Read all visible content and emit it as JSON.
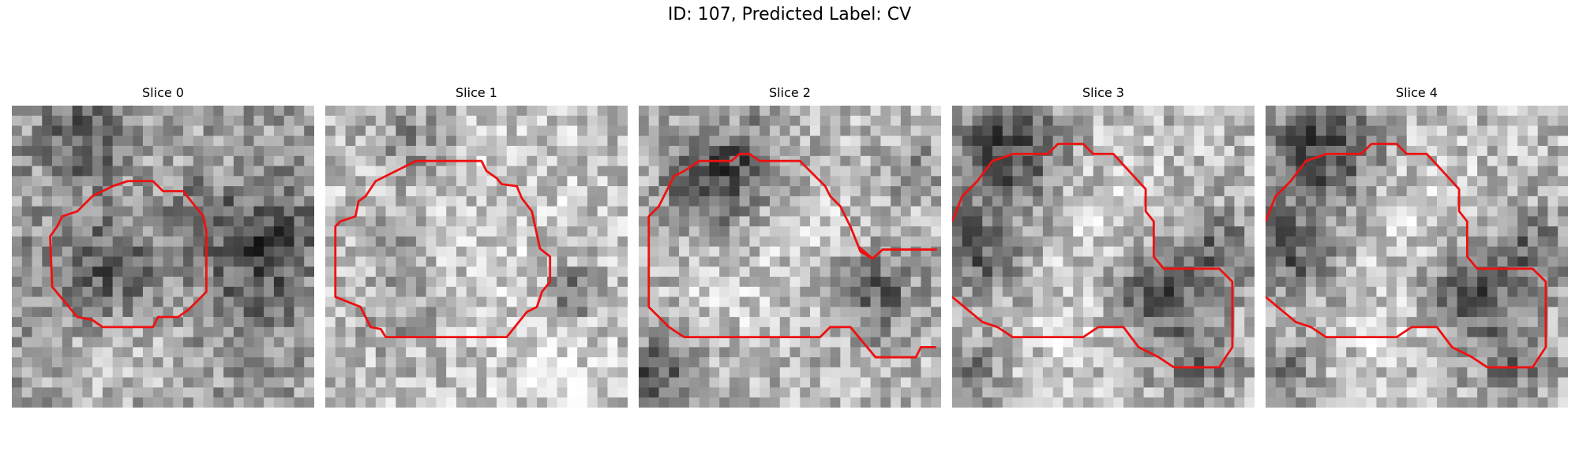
{
  "figure": {
    "title": "ID: 107, Predicted Label: CV"
  },
  "panels": [
    {
      "title": "Slice 0"
    },
    {
      "title": "Slice 1"
    },
    {
      "title": "Slice 2"
    },
    {
      "title": "Slice 3"
    },
    {
      "title": "Slice 4"
    }
  ],
  "colors": {
    "contour": "#ee1111",
    "background": "#ffffff"
  }
}
